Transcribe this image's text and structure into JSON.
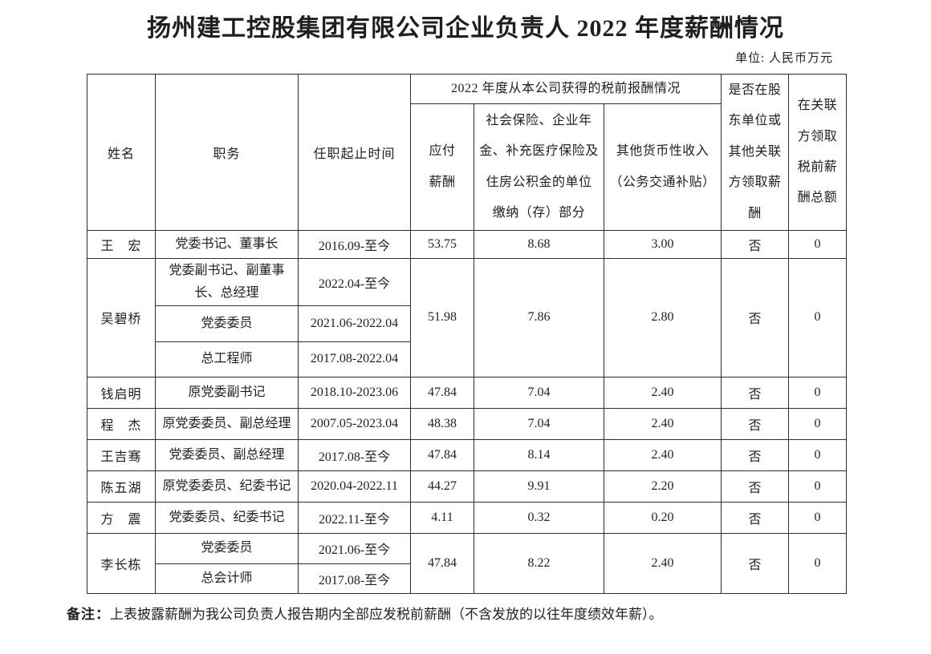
{
  "document": {
    "title": "扬州建工控股集团有限公司企业负责人 2022 年度薪酬情况",
    "unit_label": "单位: 人民币万元",
    "note": {
      "label": "备注：",
      "text": "上表披露薪酬为我公司负责人报告期内全部应发税前薪酬（不含发放的以往年度绩效年薪）。"
    }
  },
  "table": {
    "headers": {
      "name": "姓名",
      "position": "职务",
      "term": "任职起止时间",
      "group_2022": "2022 年度从本公司获得的税前报酬情况",
      "payable": "应付\n薪酬",
      "social_insurance": "社会保险、企业年\n金、补充医疗保险及\n住房公积金的单位\n缴纳（存）部分",
      "other_income": "其他货币性收入\n（公务交通补贴）",
      "related_party_paid": "是否在股\n东单位或\n其他关联\n方领取薪\n酬",
      "related_party_total": "在关联\n方领取\n税前薪\n酬总额"
    },
    "people": [
      {
        "name": "王　宏",
        "terms": [
          {
            "position": "党委书记、董事长",
            "term": "2016.09-至今"
          }
        ],
        "payable": "53.75",
        "social": "8.68",
        "other": "3.00",
        "related_paid": "否",
        "related_total": "0"
      },
      {
        "name": "吴碧桥",
        "terms": [
          {
            "position": "党委副书记、副董事\n长、总经理",
            "term": "2022.04-至今"
          },
          {
            "position": "党委委员",
            "term": "2021.06-2022.04"
          },
          {
            "position": "总工程师",
            "term": "2017.08-2022.04"
          }
        ],
        "payable": "51.98",
        "social": "7.86",
        "other": "2.80",
        "related_paid": "否",
        "related_total": "0"
      },
      {
        "name": "钱启明",
        "terms": [
          {
            "position": "原党委副书记",
            "term": "2018.10-2023.06"
          }
        ],
        "payable": "47.84",
        "social": "7.04",
        "other": "2.40",
        "related_paid": "否",
        "related_total": "0"
      },
      {
        "name": "程　杰",
        "terms": [
          {
            "position": "原党委委员、副总经理",
            "term": "2007.05-2023.04"
          }
        ],
        "payable": "48.38",
        "social": "7.04",
        "other": "2.40",
        "related_paid": "否",
        "related_total": "0"
      },
      {
        "name": "王吉骞",
        "terms": [
          {
            "position": "党委委员、副总经理",
            "term": "2017.08-至今"
          }
        ],
        "payable": "47.84",
        "social": "8.14",
        "other": "2.40",
        "related_paid": "否",
        "related_total": "0"
      },
      {
        "name": "陈五湖",
        "terms": [
          {
            "position": "原党委委员、纪委书记",
            "term": "2020.04-2022.11"
          }
        ],
        "payable": "44.27",
        "social": "9.91",
        "other": "2.20",
        "related_paid": "否",
        "related_total": "0"
      },
      {
        "name": "方　震",
        "terms": [
          {
            "position": "党委委员、纪委书记",
            "term": "2022.11-至今"
          }
        ],
        "payable": "4.11",
        "social": "0.32",
        "other": "0.20",
        "related_paid": "否",
        "related_total": "0"
      },
      {
        "name": "李长栋",
        "terms": [
          {
            "position": "党委委员",
            "term": "2021.06-至今"
          },
          {
            "position": "总会计师",
            "term": "2017.08-至今"
          }
        ],
        "payable": "47.84",
        "social": "8.22",
        "other": "2.40",
        "related_paid": "否",
        "related_total": "0"
      }
    ]
  }
}
